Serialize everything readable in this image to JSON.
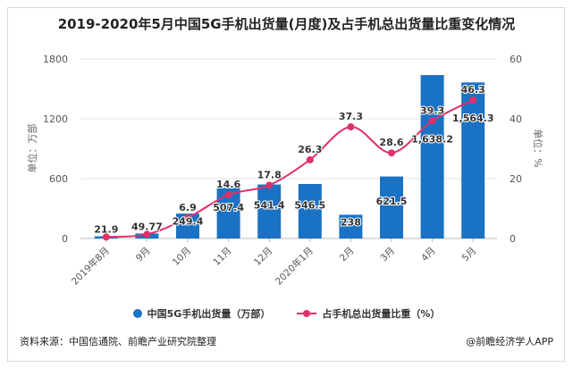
{
  "chart_data": {
    "type": "bar+line",
    "title": "2019-2020年5月中国5G手机出货量(月度)及占手机总出货量比重变化情况",
    "categories": [
      "2019年8月",
      "9月",
      "10月",
      "11月",
      "12月",
      "2020年1月",
      "2月",
      "3月",
      "4月",
      "5月"
    ],
    "series": [
      {
        "name": "中国5G手机出货量（万部）",
        "type": "bar",
        "axis": "left",
        "color": "#1a72c4",
        "values": [
          21.9,
          49.77,
          249.4,
          507.4,
          541.4,
          546.5,
          238,
          621.5,
          1638.2,
          1564.3
        ],
        "labels": [
          "21.9",
          "49.77",
          "249.4",
          "507.4",
          "541.4",
          "546.5",
          "238",
          "621.5",
          "1,638.2",
          "1,564.3"
        ]
      },
      {
        "name": "占手机总出货量比重（%）",
        "type": "line",
        "axis": "right",
        "color": "#e0306a",
        "values": [
          0.5,
          1.4,
          6.9,
          14.6,
          17.8,
          26.3,
          37.3,
          28.6,
          39.3,
          46.3
        ],
        "labels": [
          "",
          "",
          "6.9",
          "14.6",
          "17.8",
          "26.3",
          "37.3",
          "28.6",
          "39.3",
          "46.3"
        ]
      }
    ],
    "ylabel": "单位：万部",
    "y2label": "单位：%",
    "ylim": [
      0,
      1800
    ],
    "yticks": [
      "0",
      "600",
      "1200",
      "1800"
    ],
    "y2lim": [
      0,
      60
    ],
    "y2ticks": [
      "0",
      "20",
      "40",
      "60"
    ],
    "grid": true,
    "legend": "bottom"
  },
  "footer": {
    "source": "资料来源：中国信通院、前瞻产业研究院整理",
    "brand": "@前瞻经济学人APP"
  }
}
